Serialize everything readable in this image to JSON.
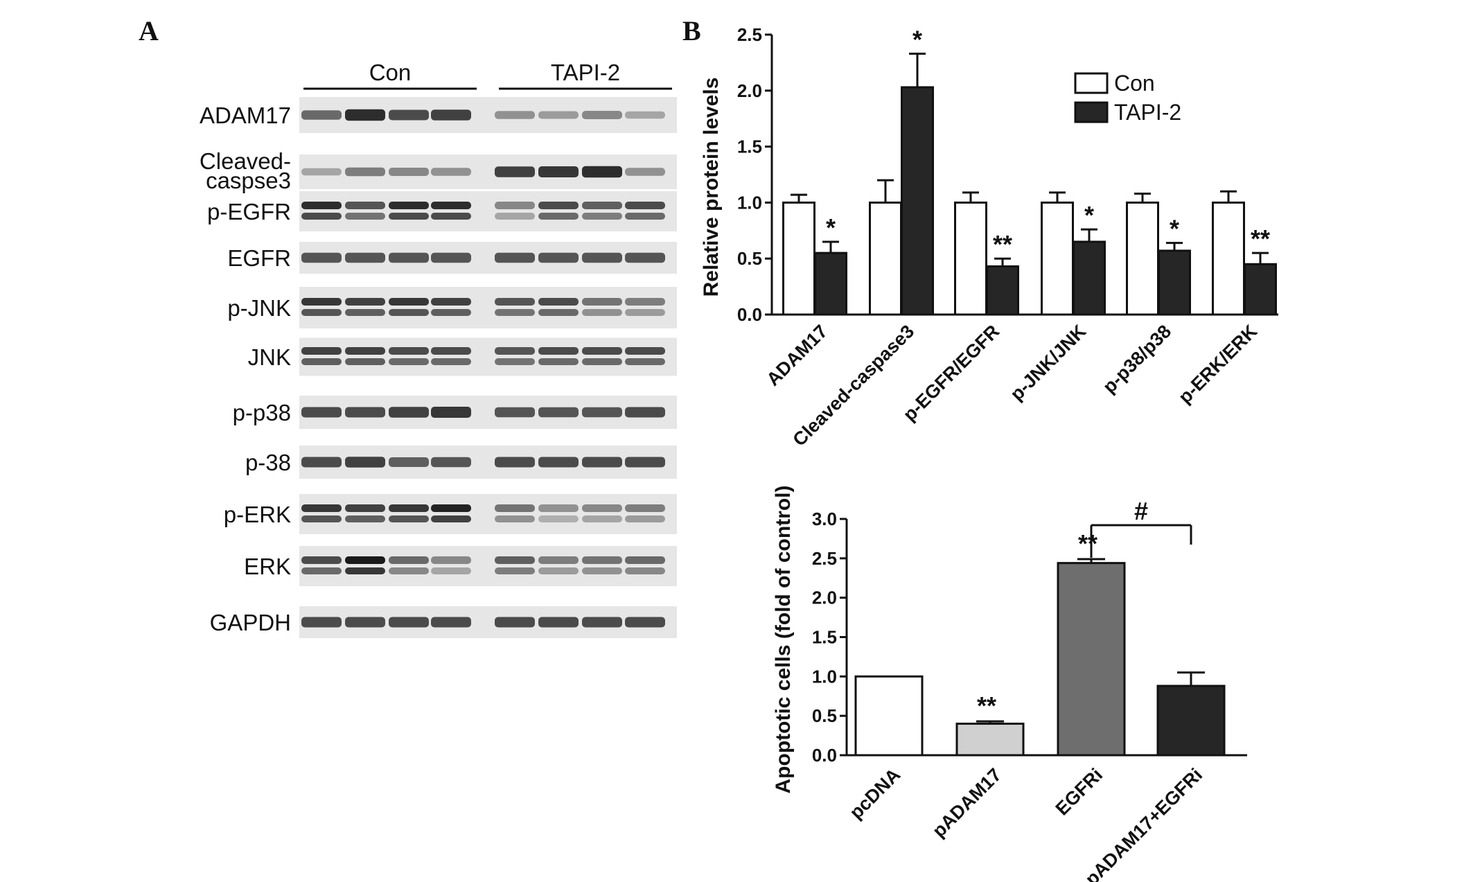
{
  "panels": {
    "a": "A",
    "b": "B"
  },
  "blot": {
    "groups": [
      "Con",
      "TAPI-2"
    ],
    "rows": [
      {
        "label": "ADAM17",
        "intensity": [
          0.55,
          0.85,
          0.7,
          0.75,
          0.35,
          0.3,
          0.4,
          0.25
        ],
        "double": false
      },
      {
        "label": "Cleaved-caspse3",
        "lines": [
          "Cleaved-",
          "caspse3"
        ],
        "intensity": [
          0.25,
          0.45,
          0.4,
          0.35,
          0.75,
          0.8,
          0.85,
          0.35
        ],
        "double": false
      },
      {
        "label": "p-EGFR",
        "intensity": [
          0.85,
          0.65,
          0.85,
          0.85,
          0.4,
          0.7,
          0.6,
          0.7
        ],
        "double": true
      },
      {
        "label": "EGFR",
        "intensity": [
          0.65,
          0.65,
          0.65,
          0.65,
          0.65,
          0.65,
          0.65,
          0.65
        ],
        "double": false
      },
      {
        "label": "p-JNK",
        "intensity": [
          0.8,
          0.75,
          0.8,
          0.75,
          0.65,
          0.7,
          0.5,
          0.45
        ],
        "double": true
      },
      {
        "label": "JNK",
        "intensity": [
          0.75,
          0.75,
          0.7,
          0.7,
          0.65,
          0.7,
          0.7,
          0.7
        ],
        "double": true
      },
      {
        "label": "p-p38",
        "intensity": [
          0.7,
          0.7,
          0.75,
          0.8,
          0.65,
          0.65,
          0.65,
          0.7
        ],
        "double": false
      },
      {
        "label": "p-38",
        "intensity": [
          0.7,
          0.75,
          0.6,
          0.65,
          0.7,
          0.7,
          0.7,
          0.7
        ],
        "double": false
      },
      {
        "label": "p-ERK",
        "intensity": [
          0.8,
          0.75,
          0.8,
          0.9,
          0.5,
          0.35,
          0.4,
          0.45
        ],
        "double": true
      },
      {
        "label": "ERK",
        "intensity": [
          0.7,
          0.95,
          0.55,
          0.4,
          0.6,
          0.45,
          0.5,
          0.55
        ],
        "double": true
      },
      {
        "label": "GAPDH",
        "intensity": [
          0.7,
          0.7,
          0.7,
          0.7,
          0.7,
          0.7,
          0.7,
          0.7
        ],
        "double": false
      }
    ]
  },
  "chart_data": [
    {
      "type": "bar",
      "panel": "B",
      "ylabel": "Relative protein levels",
      "ylim": [
        0,
        2.5
      ],
      "yticks": [
        "0.0",
        "0.5",
        "1.0",
        "1.5",
        "2.0",
        "2.5"
      ],
      "categories": [
        "ADAM17",
        "Cleaved-caspase3",
        "p-EGFR/EGFR",
        "p-JNK/JNK",
        "p-p38/p38",
        "p-ERK/ERK"
      ],
      "legend_position": "top-right",
      "series": [
        {
          "name": "Con",
          "color": "#ffffff",
          "values": [
            1.0,
            1.0,
            1.0,
            1.0,
            1.0,
            1.0
          ],
          "errors": [
            0.07,
            0.2,
            0.09,
            0.09,
            0.08,
            0.1
          ],
          "marks": [
            "",
            "",
            "",
            "",
            "",
            ""
          ]
        },
        {
          "name": "TAPI-2",
          "color": "#262626",
          "values": [
            0.55,
            2.03,
            0.43,
            0.65,
            0.57,
            0.45
          ],
          "errors": [
            0.1,
            0.3,
            0.07,
            0.11,
            0.07,
            0.1
          ],
          "marks": [
            "*",
            "*",
            "**",
            "*",
            "*",
            "**"
          ]
        }
      ]
    },
    {
      "type": "bar",
      "ylabel": "Apoptotic cells (fold of control)",
      "ylim": [
        0,
        3.0
      ],
      "yticks": [
        "0.0",
        "0.5",
        "1.0",
        "1.5",
        "2.0",
        "2.5",
        "3.0"
      ],
      "categories": [
        "pcDNA",
        "pADAM17",
        "EGFRi",
        "pADAM17+EGFRi"
      ],
      "values": [
        1.0,
        0.4,
        2.44,
        0.88
      ],
      "errors": [
        0.0,
        0.03,
        0.05,
        0.17
      ],
      "colors": [
        "#ffffff",
        "#d0d0d0",
        "#6e6e6e",
        "#262626"
      ],
      "marks": [
        "",
        "**",
        "**",
        ""
      ],
      "bracket": {
        "from": "EGFRi",
        "to": "pADAM17+EGFRi",
        "mark": "#"
      }
    }
  ]
}
